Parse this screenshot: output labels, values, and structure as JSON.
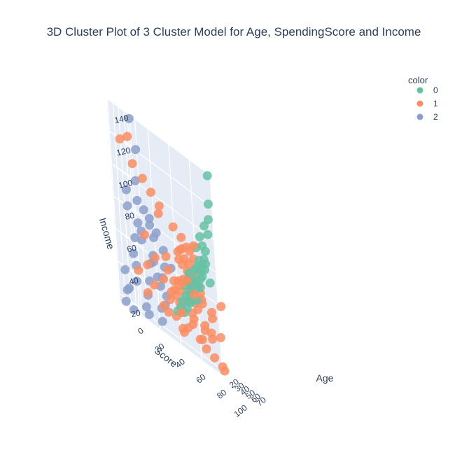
{
  "chart_data": {
    "type": "scatter3d",
    "title": "3D Cluster Plot of 3 Cluster Model for Age, SpendingScore and Income",
    "axes": {
      "x": {
        "label": "Age",
        "ticks": [
          "20",
          "30",
          "40",
          "50",
          "60",
          "70"
        ],
        "range": [
          18,
          72
        ]
      },
      "y": {
        "label": "Score",
        "ticks": [
          "0",
          "20",
          "40",
          "60",
          "80",
          "100"
        ],
        "range": [
          0,
          100
        ]
      },
      "z": {
        "label": "Income",
        "ticks": [
          "20",
          "40",
          "60",
          "80",
          "100",
          "120",
          "140"
        ],
        "range": [
          15,
          140
        ]
      }
    },
    "legend": {
      "title": "color",
      "placement": "top-right",
      "entries": [
        {
          "name": "0",
          "color": "#66c2a5"
        },
        {
          "name": "1",
          "color": "#fc8d62"
        },
        {
          "name": "2",
          "color": "#8da0cb"
        }
      ]
    },
    "grid": true,
    "series": [
      {
        "name": "0",
        "color": "#66c2a5",
        "points": [
          [
            28,
            92,
            138
          ],
          [
            30,
            90,
            120
          ],
          [
            32,
            88,
            110
          ],
          [
            35,
            85,
            100
          ],
          [
            29,
            80,
            95
          ],
          [
            38,
            78,
            82
          ],
          [
            33,
            82,
            80
          ],
          [
            40,
            75,
            78
          ],
          [
            36,
            70,
            72
          ],
          [
            44,
            72,
            70
          ],
          [
            31,
            77,
            68
          ],
          [
            42,
            66,
            65
          ],
          [
            47,
            68,
            62
          ],
          [
            34,
            71,
            60
          ],
          [
            39,
            63,
            58
          ],
          [
            45,
            60,
            55
          ],
          [
            50,
            62,
            52
          ],
          [
            37,
            58,
            50
          ],
          [
            48,
            55,
            48
          ],
          [
            41,
            52,
            45
          ],
          [
            53,
            50,
            42
          ],
          [
            43,
            49,
            40
          ],
          [
            55,
            46,
            38
          ],
          [
            46,
            44,
            36
          ],
          [
            36,
            81,
            88
          ],
          [
            49,
            65,
            74
          ],
          [
            32,
            74,
            86
          ],
          [
            51,
            57,
            61
          ],
          [
            27,
            86,
            104
          ],
          [
            40,
            61,
            66
          ],
          [
            29,
            83,
            76
          ],
          [
            45,
            54,
            56
          ],
          [
            34,
            79,
            90
          ],
          [
            52,
            60,
            70
          ],
          [
            38,
            69,
            64
          ],
          [
            30,
            87,
            70
          ],
          [
            44,
            58,
            52
          ],
          [
            56,
            52,
            47
          ],
          [
            35,
            76,
            73
          ],
          [
            42,
            71,
            79
          ]
        ]
      },
      {
        "name": "1",
        "color": "#fc8d62",
        "points": [
          [
            20,
            10,
            120
          ],
          [
            25,
            15,
            125
          ],
          [
            22,
            20,
            110
          ],
          [
            30,
            25,
            105
          ],
          [
            35,
            30,
            100
          ],
          [
            40,
            35,
            95
          ],
          [
            28,
            40,
            90
          ],
          [
            45,
            45,
            88
          ],
          [
            50,
            50,
            85
          ],
          [
            55,
            55,
            80
          ],
          [
            60,
            45,
            78
          ],
          [
            65,
            40,
            76
          ],
          [
            23,
            60,
            75
          ],
          [
            33,
            65,
            72
          ],
          [
            43,
            50,
            70
          ],
          [
            53,
            48,
            68
          ],
          [
            63,
            52,
            65
          ],
          [
            68,
            55,
            62
          ],
          [
            26,
            35,
            60
          ],
          [
            36,
            42,
            58
          ],
          [
            46,
            47,
            56
          ],
          [
            56,
            52,
            55
          ],
          [
            66,
            58,
            54
          ],
          [
            24,
            28,
            52
          ],
          [
            34,
            38,
            50
          ],
          [
            44,
            43,
            48
          ],
          [
            54,
            50,
            47
          ],
          [
            64,
            55,
            46
          ],
          [
            21,
            20,
            44
          ],
          [
            31,
            30,
            42
          ],
          [
            41,
            40,
            40
          ],
          [
            51,
            46,
            39
          ],
          [
            61,
            52,
            38
          ],
          [
            70,
            58,
            36
          ],
          [
            27,
            25,
            34
          ],
          [
            37,
            35,
            33
          ],
          [
            47,
            42,
            32
          ],
          [
            57,
            48,
            30
          ],
          [
            67,
            54,
            28
          ],
          [
            19,
            85,
            26
          ],
          [
            24,
            90,
            24
          ],
          [
            29,
            95,
            22
          ],
          [
            22,
            80,
            30
          ],
          [
            26,
            88,
            35
          ],
          [
            32,
            78,
            40
          ],
          [
            38,
            92,
            20
          ],
          [
            42,
            60,
            62
          ],
          [
            48,
            57,
            64
          ],
          [
            58,
            50,
            66
          ],
          [
            62,
            47,
            60
          ],
          [
            39,
            55,
            57
          ],
          [
            49,
            45,
            53
          ],
          [
            59,
            42,
            50
          ],
          [
            69,
            50,
            49
          ],
          [
            35,
            48,
            54
          ],
          [
            45,
            52,
            59
          ],
          [
            52,
            40,
            45
          ],
          [
            62,
            38,
            42
          ],
          [
            28,
            45,
            66
          ],
          [
            18,
            30,
            70
          ],
          [
            38,
            58,
            73
          ],
          [
            48,
            62,
            77
          ],
          [
            58,
            60,
            71
          ],
          [
            66,
            48,
            41
          ],
          [
            32,
            55,
            37
          ],
          [
            25,
            50,
            46
          ],
          [
            44,
            36,
            31
          ],
          [
            54,
            44,
            27
          ],
          [
            64,
            40,
            25
          ],
          [
            70,
            46,
            34
          ],
          [
            21,
            70,
            82
          ],
          [
            27,
            74,
            86
          ],
          [
            31,
            96,
            60
          ],
          [
            36,
            84,
            48
          ],
          [
            20,
            92,
            52
          ],
          [
            23,
            98,
            40
          ],
          [
            40,
            80,
            38
          ],
          [
            30,
            70,
            55
          ],
          [
            50,
            66,
            58
          ],
          [
            60,
            62,
            52
          ]
        ]
      },
      {
        "name": "2",
        "color": "#8da0cb",
        "points": [
          [
            40,
            10,
            137
          ],
          [
            45,
            12,
            120
          ],
          [
            35,
            15,
            100
          ],
          [
            30,
            8,
            90
          ],
          [
            38,
            14,
            88
          ],
          [
            42,
            18,
            85
          ],
          [
            48,
            20,
            82
          ],
          [
            36,
            5,
            80
          ],
          [
            44,
            22,
            78
          ],
          [
            50,
            25,
            76
          ],
          [
            33,
            16,
            74
          ],
          [
            39,
            28,
            72
          ],
          [
            46,
            12,
            70
          ],
          [
            52,
            30,
            68
          ],
          [
            31,
            20,
            65
          ],
          [
            37,
            10,
            63
          ],
          [
            43,
            24,
            60
          ],
          [
            49,
            32,
            58
          ],
          [
            55,
            18,
            56
          ],
          [
            34,
            26,
            54
          ],
          [
            40,
            6,
            52
          ],
          [
            47,
            30,
            50
          ],
          [
            53,
            22,
            48
          ],
          [
            29,
            14,
            46
          ],
          [
            35,
            34,
            44
          ],
          [
            41,
            20,
            42
          ],
          [
            57,
            28,
            40
          ],
          [
            26,
            4,
            38
          ],
          [
            32,
            12,
            36
          ],
          [
            38,
            36,
            34
          ],
          [
            44,
            16,
            32
          ],
          [
            50,
            26,
            30
          ],
          [
            24,
            8,
            28
          ],
          [
            30,
            3,
            26
          ],
          [
            36,
            18,
            24
          ],
          [
            42,
            30,
            22
          ],
          [
            48,
            14,
            20
          ],
          [
            28,
            2,
            18
          ],
          [
            34,
            6,
            16
          ],
          [
            55,
            35,
            60
          ]
        ]
      }
    ]
  }
}
